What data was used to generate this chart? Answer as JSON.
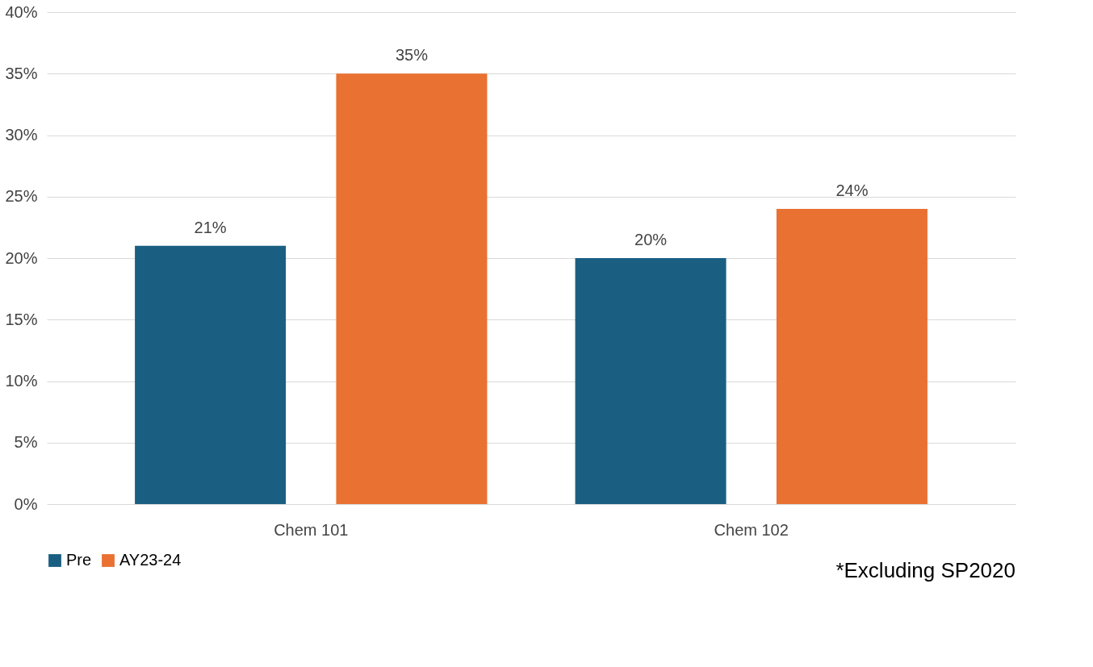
{
  "chart_data": {
    "type": "bar",
    "categories": [
      "Chem 101",
      "Chem 102"
    ],
    "series": [
      {
        "name": "Pre",
        "color": "#1a5f82",
        "values": [
          21,
          20
        ],
        "value_labels": [
          "21%",
          "20%"
        ]
      },
      {
        "name": "AY23-24",
        "color": "#e97132",
        "values": [
          35,
          24
        ],
        "value_labels": [
          "35%",
          "24%"
        ]
      }
    ],
    "ylim": [
      0,
      40
    ],
    "yticks": [
      {
        "value": 0,
        "label": "0%"
      },
      {
        "value": 5,
        "label": "5%"
      },
      {
        "value": 10,
        "label": "10%"
      },
      {
        "value": 15,
        "label": "15%"
      },
      {
        "value": 20,
        "label": "20%"
      },
      {
        "value": 25,
        "label": "25%"
      },
      {
        "value": 30,
        "label": "30%"
      },
      {
        "value": 35,
        "label": "35%"
      },
      {
        "value": 40,
        "label": "40%"
      }
    ],
    "grid": "y",
    "legend": "bottom",
    "annotations": [
      "*Excluding SP2020"
    ]
  }
}
